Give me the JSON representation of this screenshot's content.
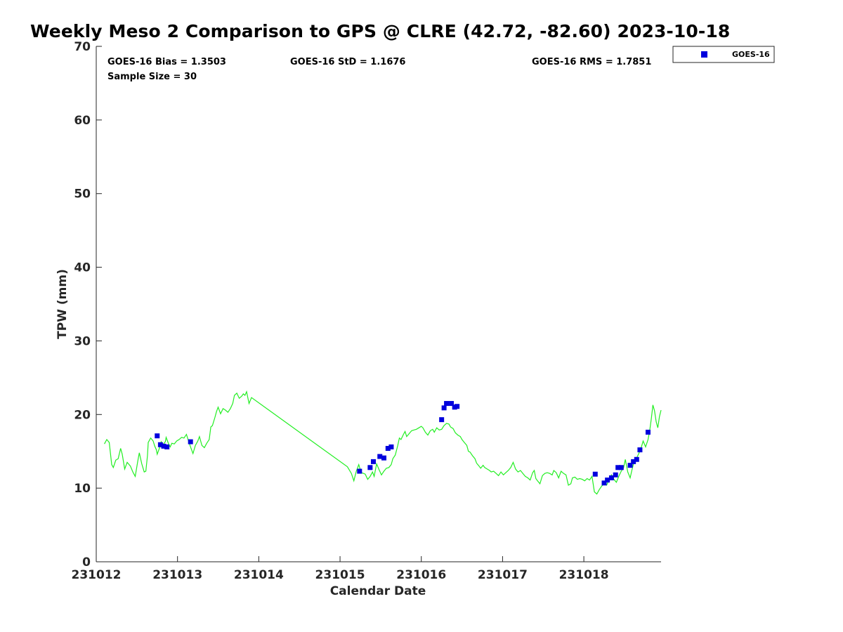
{
  "title": "Weekly Meso 2 Comparison to GPS @ CLRE (42.72, -82.60) 2023-10-18",
  "stats": {
    "bias": "GOES-16 Bias = 1.3503",
    "std": "GOES-16 StD = 1.1676",
    "rms": "GOES-16 RMS = 1.7851",
    "sample": "Sample Size = 30"
  },
  "legend": {
    "label": "GOES-16"
  },
  "colors": {
    "goes": "#0000dd",
    "gps": "#22ee22",
    "axis": "#262626"
  },
  "chart_data": {
    "type": "scatter",
    "xlabel": "Calendar Date",
    "ylabel": "TPW (mm)",
    "x_unit": "days",
    "xlim": [
      0,
      6.95
    ],
    "ylim": [
      0,
      70
    ],
    "x_ticks": [
      {
        "value": 0,
        "label": "231012"
      },
      {
        "value": 1,
        "label": "231013"
      },
      {
        "value": 2,
        "label": "231014"
      },
      {
        "value": 3,
        "label": "231015"
      },
      {
        "value": 4,
        "label": "231016"
      },
      {
        "value": 5,
        "label": "231017"
      },
      {
        "value": 6,
        "label": "231018"
      }
    ],
    "y_ticks": [
      0,
      10,
      20,
      30,
      40,
      50,
      60,
      70
    ],
    "series": [
      {
        "type": "line",
        "points": [
          [
            0.1,
            16.0
          ],
          [
            0.13,
            16.6
          ],
          [
            0.16,
            16.2
          ],
          [
            0.19,
            13.2
          ],
          [
            0.21,
            12.8
          ],
          [
            0.24,
            13.8
          ],
          [
            0.27,
            14.0
          ],
          [
            0.3,
            15.4
          ],
          [
            0.32,
            14.6
          ],
          [
            0.35,
            12.6
          ],
          [
            0.38,
            13.5
          ],
          [
            0.42,
            13.0
          ],
          [
            0.45,
            12.2
          ],
          [
            0.48,
            11.6
          ],
          [
            0.51,
            13.6
          ],
          [
            0.53,
            14.8
          ],
          [
            0.56,
            13.3
          ],
          [
            0.59,
            12.2
          ],
          [
            0.61,
            12.3
          ],
          [
            0.63,
            14.4
          ],
          [
            0.64,
            16.2
          ],
          [
            0.67,
            16.8
          ],
          [
            0.7,
            16.4
          ],
          [
            0.72,
            15.7
          ],
          [
            0.74,
            15.2
          ],
          [
            0.75,
            14.6
          ],
          [
            0.78,
            15.5
          ],
          [
            0.8,
            16.3
          ],
          [
            0.82,
            15.9
          ],
          [
            0.85,
            16.3
          ],
          [
            0.86,
            16.9
          ],
          [
            0.89,
            16.0
          ],
          [
            0.91,
            15.6
          ],
          [
            0.93,
            16.1
          ],
          [
            0.96,
            16.0
          ],
          [
            0.99,
            16.4
          ],
          [
            1.02,
            16.6
          ],
          [
            1.05,
            16.9
          ],
          [
            1.08,
            16.8
          ],
          [
            1.11,
            17.3
          ],
          [
            1.13,
            16.6
          ],
          [
            1.16,
            15.6
          ],
          [
            1.19,
            14.7
          ],
          [
            1.22,
            15.8
          ],
          [
            1.25,
            16.4
          ],
          [
            1.27,
            17.0
          ],
          [
            1.3,
            15.8
          ],
          [
            1.33,
            15.5
          ],
          [
            1.36,
            16.1
          ],
          [
            1.39,
            16.6
          ],
          [
            1.41,
            18.3
          ],
          [
            1.43,
            18.5
          ],
          [
            1.46,
            19.6
          ],
          [
            1.48,
            20.4
          ],
          [
            1.5,
            21.0
          ],
          [
            1.53,
            20.1
          ],
          [
            1.56,
            20.8
          ],
          [
            1.59,
            20.6
          ],
          [
            1.62,
            20.3
          ],
          [
            1.65,
            20.8
          ],
          [
            1.68,
            21.5
          ],
          [
            1.7,
            22.6
          ],
          [
            1.73,
            22.9
          ],
          [
            1.76,
            22.2
          ],
          [
            1.79,
            22.5
          ],
          [
            1.81,
            22.8
          ],
          [
            1.83,
            22.6
          ],
          [
            1.85,
            23.1
          ],
          [
            1.88,
            21.5
          ],
          [
            1.91,
            22.3
          ],
          [
            3.09,
            12.9
          ],
          [
            3.14,
            12.0
          ],
          [
            3.17,
            11.0
          ],
          [
            3.2,
            12.3
          ],
          [
            3.23,
            13.2
          ],
          [
            3.26,
            12.1
          ],
          [
            3.29,
            12.0
          ],
          [
            3.31,
            11.9
          ],
          [
            3.34,
            11.2
          ],
          [
            3.37,
            11.6
          ],
          [
            3.4,
            12.2
          ],
          [
            3.42,
            11.6
          ],
          [
            3.45,
            13.3
          ],
          [
            3.48,
            12.5
          ],
          [
            3.51,
            11.8
          ],
          [
            3.54,
            12.3
          ],
          [
            3.57,
            12.7
          ],
          [
            3.6,
            12.8
          ],
          [
            3.63,
            13.2
          ],
          [
            3.65,
            14.0
          ],
          [
            3.68,
            14.5
          ],
          [
            3.71,
            15.8
          ],
          [
            3.73,
            16.8
          ],
          [
            3.75,
            16.6
          ],
          [
            3.78,
            17.3
          ],
          [
            3.8,
            17.7
          ],
          [
            3.82,
            17.0
          ],
          [
            3.85,
            17.4
          ],
          [
            3.88,
            17.8
          ],
          [
            3.91,
            17.9
          ],
          [
            3.94,
            18.0
          ],
          [
            3.97,
            18.2
          ],
          [
            4.0,
            18.4
          ],
          [
            4.02,
            18.2
          ],
          [
            4.05,
            17.6
          ],
          [
            4.08,
            17.2
          ],
          [
            4.11,
            17.8
          ],
          [
            4.14,
            18.0
          ],
          [
            4.16,
            17.6
          ],
          [
            4.19,
            18.2
          ],
          [
            4.22,
            17.9
          ],
          [
            4.25,
            18.0
          ],
          [
            4.28,
            18.5
          ],
          [
            4.31,
            18.8
          ],
          [
            4.34,
            18.7
          ],
          [
            4.36,
            18.3
          ],
          [
            4.39,
            18.1
          ],
          [
            4.42,
            17.5
          ],
          [
            4.45,
            17.2
          ],
          [
            4.48,
            17.0
          ],
          [
            4.5,
            16.6
          ],
          [
            4.53,
            16.2
          ],
          [
            4.56,
            15.8
          ],
          [
            4.58,
            15.0
          ],
          [
            4.6,
            14.9
          ],
          [
            4.63,
            14.4
          ],
          [
            4.66,
            14.0
          ],
          [
            4.68,
            13.4
          ],
          [
            4.71,
            13.0
          ],
          [
            4.73,
            12.7
          ],
          [
            4.76,
            13.1
          ],
          [
            4.78,
            12.8
          ],
          [
            4.81,
            12.6
          ],
          [
            4.84,
            12.4
          ],
          [
            4.86,
            12.2
          ],
          [
            4.89,
            12.3
          ],
          [
            4.92,
            12.0
          ],
          [
            4.95,
            11.7
          ],
          [
            4.98,
            12.2
          ],
          [
            5.01,
            11.8
          ],
          [
            5.04,
            12.1
          ],
          [
            5.07,
            12.4
          ],
          [
            5.1,
            12.8
          ],
          [
            5.13,
            13.5
          ],
          [
            5.16,
            12.6
          ],
          [
            5.19,
            12.2
          ],
          [
            5.22,
            12.4
          ],
          [
            5.25,
            12.0
          ],
          [
            5.28,
            11.6
          ],
          [
            5.31,
            11.4
          ],
          [
            5.34,
            11.1
          ],
          [
            5.37,
            12.1
          ],
          [
            5.39,
            12.4
          ],
          [
            5.41,
            11.3
          ],
          [
            5.43,
            11.0
          ],
          [
            5.46,
            10.6
          ],
          [
            5.49,
            11.7
          ],
          [
            5.52,
            12.0
          ],
          [
            5.55,
            12.1
          ],
          [
            5.58,
            12.0
          ],
          [
            5.61,
            11.8
          ],
          [
            5.63,
            12.4
          ],
          [
            5.66,
            12.1
          ],
          [
            5.69,
            11.4
          ],
          [
            5.72,
            12.3
          ],
          [
            5.75,
            12.0
          ],
          [
            5.78,
            11.8
          ],
          [
            5.81,
            10.4
          ],
          [
            5.84,
            10.6
          ],
          [
            5.86,
            11.4
          ],
          [
            5.89,
            11.5
          ],
          [
            5.92,
            11.2
          ],
          [
            5.95,
            11.3
          ],
          [
            5.98,
            11.2
          ],
          [
            6.01,
            11.0
          ],
          [
            6.04,
            11.3
          ],
          [
            6.07,
            11.1
          ],
          [
            6.1,
            11.6
          ],
          [
            6.13,
            9.5
          ],
          [
            6.16,
            9.2
          ],
          [
            6.19,
            9.8
          ],
          [
            6.22,
            10.3
          ],
          [
            6.25,
            10.6
          ],
          [
            6.28,
            10.4
          ],
          [
            6.31,
            11.1
          ],
          [
            6.34,
            11.8
          ],
          [
            6.37,
            11.2
          ],
          [
            6.4,
            10.8
          ],
          [
            6.43,
            11.6
          ],
          [
            6.46,
            12.3
          ],
          [
            6.49,
            12.8
          ],
          [
            6.51,
            13.9
          ],
          [
            6.54,
            12.2
          ],
          [
            6.57,
            11.4
          ],
          [
            6.59,
            12.4
          ],
          [
            6.62,
            13.7
          ],
          [
            6.65,
            14.1
          ],
          [
            6.68,
            14.8
          ],
          [
            6.7,
            15.3
          ],
          [
            6.73,
            16.4
          ],
          [
            6.76,
            15.6
          ],
          [
            6.79,
            16.6
          ],
          [
            6.81,
            17.8
          ],
          [
            6.83,
            19.4
          ],
          [
            6.85,
            21.3
          ],
          [
            6.87,
            20.5
          ],
          [
            6.89,
            19.0
          ],
          [
            6.91,
            18.2
          ],
          [
            6.93,
            19.7
          ],
          [
            6.95,
            20.6
          ]
        ]
      },
      {
        "name": "GOES-16",
        "type": "scatter",
        "points": [
          [
            0.75,
            17.1
          ],
          [
            0.79,
            15.9
          ],
          [
            0.83,
            15.7
          ],
          [
            0.87,
            15.6
          ],
          [
            1.16,
            16.3
          ],
          [
            3.24,
            12.3
          ],
          [
            3.37,
            12.8
          ],
          [
            3.41,
            13.6
          ],
          [
            3.49,
            14.3
          ],
          [
            3.54,
            14.1
          ],
          [
            3.59,
            15.4
          ],
          [
            3.63,
            15.6
          ],
          [
            4.25,
            19.3
          ],
          [
            4.28,
            20.9
          ],
          [
            4.31,
            21.5
          ],
          [
            4.37,
            21.5
          ],
          [
            4.41,
            21.0
          ],
          [
            4.44,
            21.1
          ],
          [
            6.14,
            11.9
          ],
          [
            6.25,
            10.7
          ],
          [
            6.29,
            11.1
          ],
          [
            6.34,
            11.4
          ],
          [
            6.39,
            11.8
          ],
          [
            6.42,
            12.8
          ],
          [
            6.46,
            12.8
          ],
          [
            6.57,
            13.1
          ],
          [
            6.61,
            13.6
          ],
          [
            6.65,
            13.9
          ],
          [
            6.69,
            15.2
          ],
          [
            6.79,
            17.6
          ]
        ]
      }
    ]
  }
}
